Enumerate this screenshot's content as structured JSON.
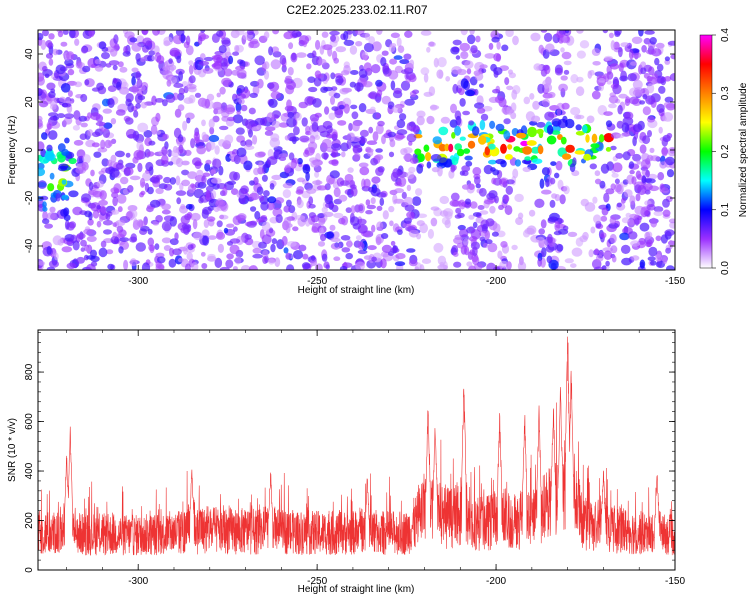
{
  "title": "C2E2.2025.233.02.11.R07",
  "chart_data": [
    {
      "type": "heatmap",
      "xlabel": "Height of straight line (km)",
      "ylabel": "Frequency (Hz)",
      "xlim": [
        -328,
        -150
      ],
      "ylim": [
        -50,
        50
      ],
      "xticks": [
        -300,
        -250,
        -200,
        -150
      ],
      "yticks": [
        -40,
        -20,
        0,
        20,
        40
      ],
      "colorbar": {
        "label": "Normalized spectral amplitude",
        "range": [
          0,
          0.4
        ],
        "ticks": [
          0.0,
          0.1,
          0.2,
          0.3,
          0.4
        ],
        "colors": [
          "#ffffff",
          "#9b30ff",
          "#0000ff",
          "#00ffff",
          "#00ff00",
          "#ffff00",
          "#ff8000",
          "#ff0000",
          "#ff00ff"
        ]
      },
      "features": [
        {
          "x_range": [
            -222,
            -168
          ],
          "y_center": 2,
          "y_halfwidth": 8,
          "amplitude": 0.3
        },
        {
          "x_range": [
            -328,
            -318
          ],
          "y_center": -10,
          "y_halfwidth": 15,
          "amplitude": 0.15
        }
      ],
      "low_amplitude_x_ranges": [
        [
          -222,
          -212
        ],
        [
          -196,
          -188
        ],
        [
          -180,
          -172
        ]
      ]
    },
    {
      "type": "line",
      "xlabel": "Height of straight line (km)",
      "ylabel": "SNR (10 * v/v)",
      "xlim": [
        -328,
        -150
      ],
      "ylim": [
        0,
        970
      ],
      "xticks": [
        -300,
        -250,
        -200,
        -150
      ],
      "yticks": [
        0,
        200,
        400,
        600,
        800
      ],
      "color": "#ee3333",
      "baseline": [
        {
          "x": -328,
          "y": 150
        },
        {
          "x": -300,
          "y": 140
        },
        {
          "x": -280,
          "y": 160
        },
        {
          "x": -250,
          "y": 150
        },
        {
          "x": -225,
          "y": 150
        },
        {
          "x": -220,
          "y": 230
        },
        {
          "x": -205,
          "y": 190
        },
        {
          "x": -190,
          "y": 200
        },
        {
          "x": -180,
          "y": 280
        },
        {
          "x": -175,
          "y": 180
        },
        {
          "x": -160,
          "y": 150
        },
        {
          "x": -150,
          "y": 140
        }
      ],
      "peaks": [
        {
          "x": -319,
          "y": 575
        },
        {
          "x": -320,
          "y": 500
        },
        {
          "x": -285,
          "y": 440
        },
        {
          "x": -263,
          "y": 420
        },
        {
          "x": -236,
          "y": 400
        },
        {
          "x": -219,
          "y": 700
        },
        {
          "x": -217,
          "y": 620
        },
        {
          "x": -209,
          "y": 795
        },
        {
          "x": -199,
          "y": 660
        },
        {
          "x": -192,
          "y": 665
        },
        {
          "x": -188,
          "y": 680
        },
        {
          "x": -184,
          "y": 690
        },
        {
          "x": -182,
          "y": 760
        },
        {
          "x": -180,
          "y": 965
        },
        {
          "x": -179,
          "y": 850
        },
        {
          "x": -170,
          "y": 420
        },
        {
          "x": -155,
          "y": 410
        }
      ]
    }
  ]
}
